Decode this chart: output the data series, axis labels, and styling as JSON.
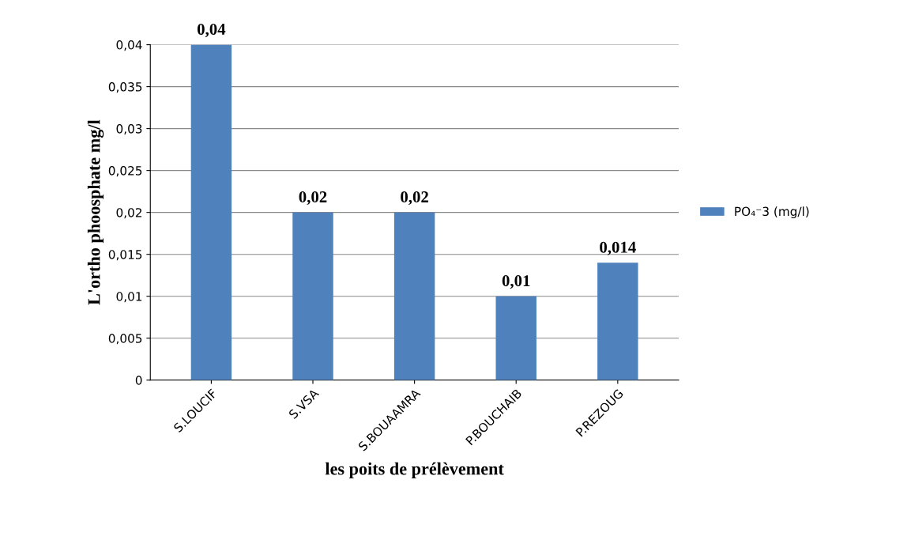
{
  "chart_data": {
    "type": "bar",
    "xlabel": "les poits de prélèvement",
    "ylabel": "L'ortho phoosphate mg/l",
    "categories": [
      "S.LOUCIF",
      "S.VSA",
      "S.BOUAAMRA",
      "P.BOUCHAIB",
      "P.REZOUG"
    ],
    "series": [
      {
        "name": "PO₄⁻3 (mg/l)",
        "color": "#4f81bd",
        "values": [
          0.04,
          0.02,
          0.02,
          0.01,
          0.014
        ],
        "value_labels": [
          "0,04",
          "0,02",
          "0,02",
          "0,01",
          "0,014"
        ]
      }
    ],
    "ylim": [
      0,
      0.04
    ],
    "yticks": [
      {
        "value": 0,
        "label": "0"
      },
      {
        "value": 0.005,
        "label": "0,005"
      },
      {
        "value": 0.01,
        "label": "0,01"
      },
      {
        "value": 0.015,
        "label": "0,015"
      },
      {
        "value": 0.02,
        "label": "0,02"
      },
      {
        "value": 0.025,
        "label": "0,025"
      },
      {
        "value": 0.03,
        "label": "0,03"
      },
      {
        "value": 0.035,
        "label": "0,035"
      },
      {
        "value": 0.04,
        "label": "0,04"
      }
    ],
    "grid": "y",
    "legend": "right"
  }
}
